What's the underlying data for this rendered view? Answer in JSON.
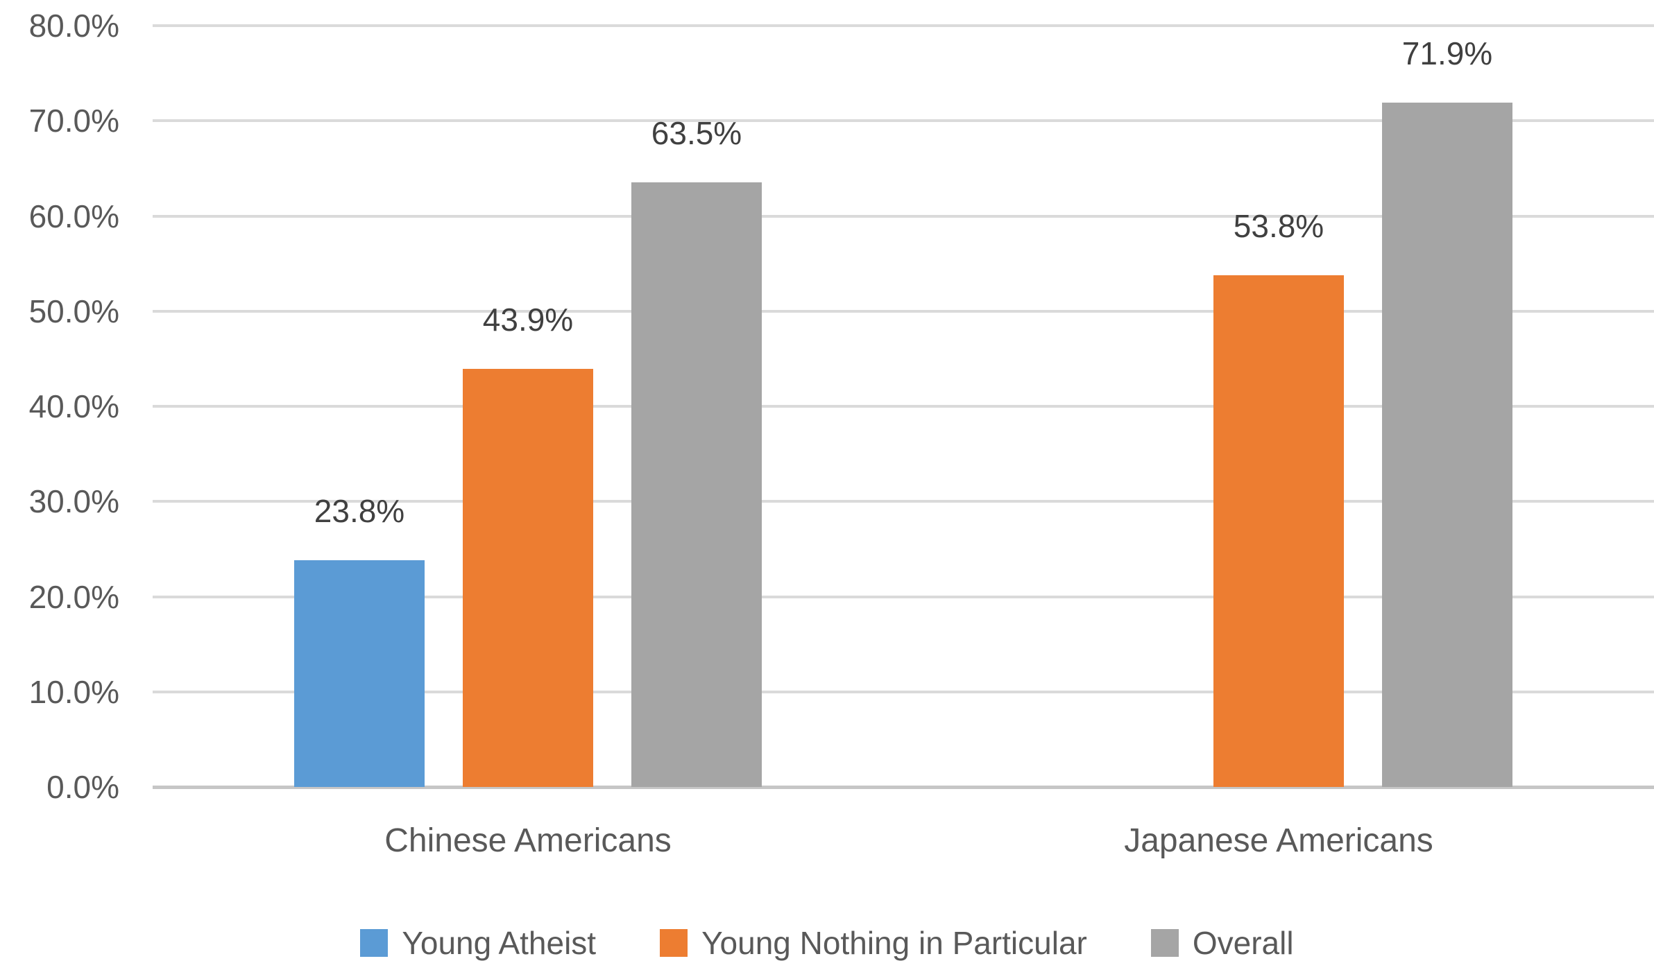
{
  "chart_data": {
    "type": "bar",
    "title": "",
    "xlabel": "",
    "ylabel": "",
    "categories": [
      "Chinese Americans",
      "Japanese Americans"
    ],
    "series": [
      {
        "name": "Young Atheist",
        "color": "#5B9BD5",
        "values": [
          23.8,
          null
        ],
        "labels": [
          "23.8%",
          null
        ]
      },
      {
        "name": "Young Nothing in Particular",
        "color": "#ED7D31",
        "values": [
          43.9,
          53.8
        ],
        "labels": [
          "43.9%",
          "53.8%"
        ]
      },
      {
        "name": "Overall",
        "color": "#A5A5A5",
        "values": [
          63.5,
          71.9
        ],
        "labels": [
          "63.5%",
          "71.9%"
        ]
      }
    ],
    "ylim": [
      0,
      80
    ],
    "ytick_step": 10,
    "ytick_labels": [
      "0.0%",
      "10.0%",
      "20.0%",
      "30.0%",
      "40.0%",
      "50.0%",
      "60.0%",
      "70.0%",
      "80.0%"
    ],
    "grid": true,
    "legend_position": "bottom"
  },
  "colors": {
    "background": "#FFFFFF",
    "gridline": "#DADADA",
    "axis_line": "#C6C6C6",
    "tick_text": "#595959",
    "data_label_text": "#404040",
    "category_text": "#595959",
    "legend_text": "#595959"
  }
}
